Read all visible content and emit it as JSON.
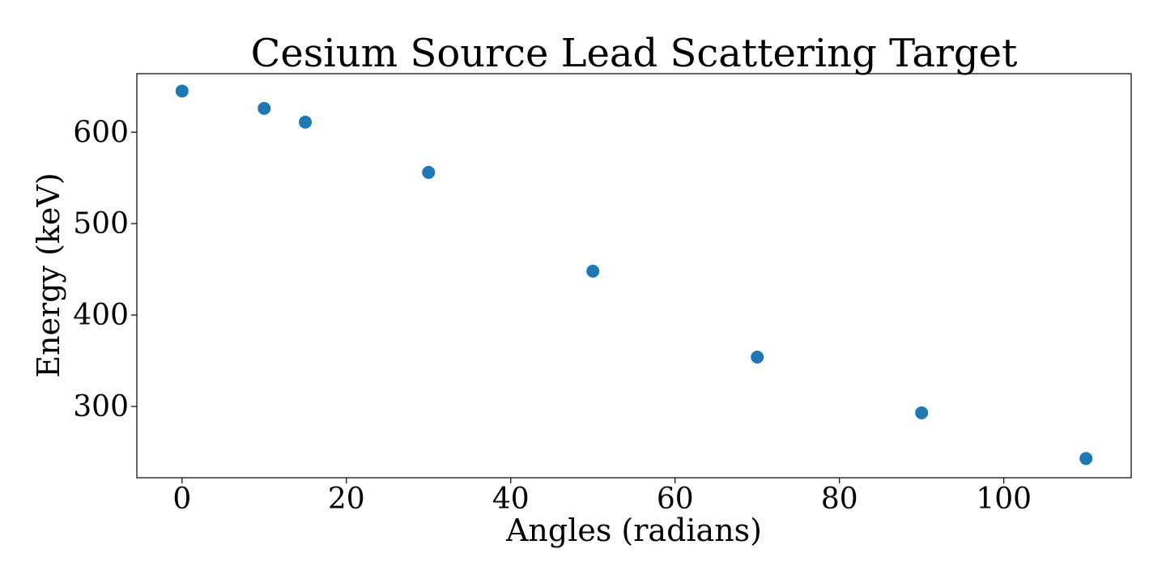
{
  "chart_data": {
    "type": "scatter",
    "title": "Cesium Source Lead Scattering Target",
    "xlabel": "Angles (radians)",
    "ylabel": "Energy (keV)",
    "x": [
      0,
      10,
      15,
      30,
      50,
      70,
      90,
      110
    ],
    "y": [
      645,
      626,
      611,
      556,
      448,
      354,
      293,
      243
    ],
    "xlim": [
      -5.5,
      115.5
    ],
    "ylim": [
      222,
      664
    ],
    "x_ticks": [
      0,
      20,
      40,
      60,
      80,
      100
    ],
    "y_ticks": [
      300,
      400,
      500,
      600
    ],
    "x_tick_labels": [
      "0",
      "20",
      "40",
      "60",
      "80",
      "100"
    ],
    "y_tick_labels": [
      "300",
      "400",
      "500",
      "600"
    ],
    "marker_color": "#1f77b4",
    "grid": false,
    "legend": "none"
  }
}
